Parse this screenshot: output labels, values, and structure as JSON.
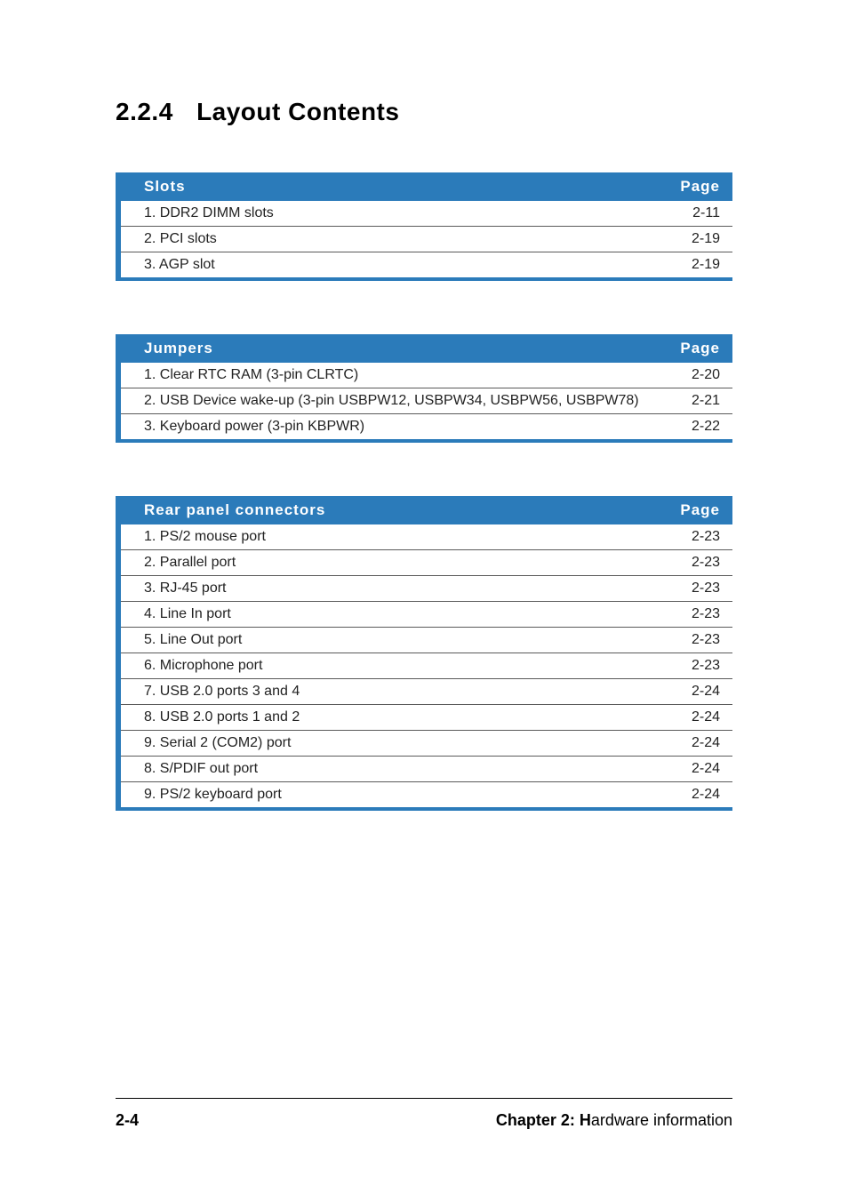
{
  "heading": {
    "number": "2.2.4",
    "title": "Layout Contents"
  },
  "colors": {
    "table_accent": "#2b7bba",
    "header_text": "#ffffff",
    "row_border": "#5a5a5a",
    "body_text": "#222222",
    "page_bg": "#ffffff"
  },
  "tables": [
    {
      "header_left": "Slots",
      "header_right": "Page",
      "rows": [
        {
          "label": "1. DDR2 DIMM slots",
          "page": "2-11"
        },
        {
          "label": "2. PCI slots",
          "page": "2-19"
        },
        {
          "label": "3. AGP slot",
          "page": "2-19"
        }
      ]
    },
    {
      "header_left": "Jumpers",
      "header_right": "Page",
      "rows": [
        {
          "label": "1. Clear RTC RAM (3-pin CLRTC)",
          "page": "2-20"
        },
        {
          "label": "2. USB Device wake-up (3-pin USBPW12, USBPW34, USBPW56, USBPW78)",
          "page": "2-21"
        },
        {
          "label": "3. Keyboard power (3-pin KBPWR)",
          "page": "2-22"
        }
      ]
    },
    {
      "header_left": "Rear panel connectors",
      "header_right": "Page",
      "rows": [
        {
          "label": "1. PS/2 mouse port",
          "page": "2-23"
        },
        {
          "label": "2. Parallel port",
          "page": "2-23"
        },
        {
          "label": "3. RJ-45 port",
          "page": "2-23"
        },
        {
          "label": "4. Line In port",
          "page": "2-23"
        },
        {
          "label": "5. Line Out port",
          "page": "2-23"
        },
        {
          "label": "6. Microphone port",
          "page": "2-23"
        },
        {
          "label": "7. USB 2.0 ports 3 and 4",
          "page": "2-24"
        },
        {
          "label": "8. USB 2.0 ports 1 and 2",
          "page": "2-24"
        },
        {
          "label": "9. Serial 2 (COM2) port",
          "page": "2-24"
        },
        {
          "label": "8. S/PDIF out port",
          "page": "2-24"
        },
        {
          "label": "9. PS/2 keyboard port",
          "page": "2-24"
        }
      ]
    }
  ],
  "footer": {
    "page_number": "2-4",
    "chapter_label": "Chapter 2: H",
    "chapter_rest": "ardware information"
  }
}
